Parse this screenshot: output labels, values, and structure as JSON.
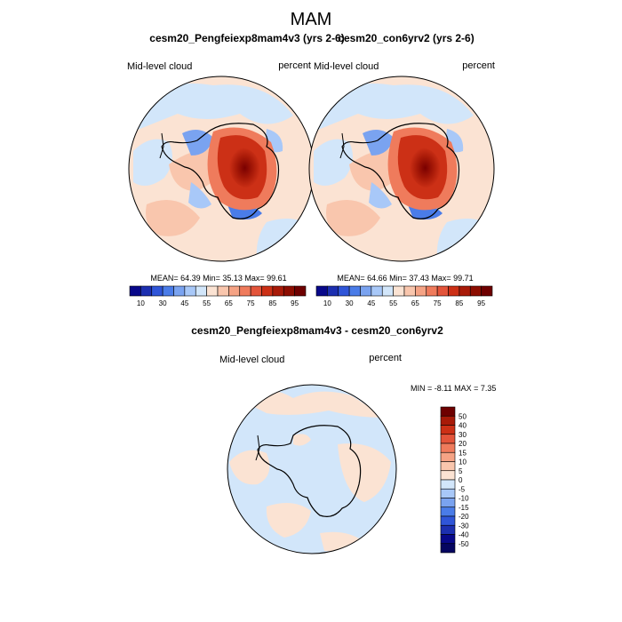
{
  "title": "MAM",
  "chart_data": [
    {
      "type": "contour-map",
      "projection": "south-polar-stereographic",
      "title": "cesm20_Pengfeiexp8mam4v3 (yrs 2-6)",
      "variable": "Mid-level cloud",
      "units": "percent",
      "stats": {
        "mean": "64.39",
        "min": "35.13",
        "max": "99.61",
        "text": "MEAN=  64.39  Min=  35.13  Max=  99.61"
      },
      "levels": [
        10,
        20,
        30,
        40,
        45,
        50,
        55,
        60,
        65,
        70,
        75,
        80,
        85,
        90,
        95
      ],
      "colorbar_labels": [
        "10",
        "30",
        "45",
        "55",
        "65",
        "75",
        "85",
        "95"
      ]
    },
    {
      "type": "contour-map",
      "projection": "south-polar-stereographic",
      "title": "cesm20_con6yrv2 (yrs 2-6)",
      "variable": "Mid-level cloud",
      "units": "percent",
      "stats": {
        "mean": "64.66",
        "min": "37.43",
        "max": "99.71",
        "text": "MEAN=  64.66  Min=  37.43  Max=  99.71"
      },
      "levels": [
        10,
        20,
        30,
        40,
        45,
        50,
        55,
        60,
        65,
        70,
        75,
        80,
        85,
        90,
        95
      ],
      "colorbar_labels": [
        "10",
        "30",
        "45",
        "55",
        "65",
        "75",
        "85",
        "95"
      ]
    },
    {
      "type": "contour-map",
      "projection": "south-polar-stereographic",
      "title": "cesm20_Pengfeiexp8mam4v3 - cesm20_con6yrv2",
      "variable": "Mid-level cloud",
      "units": "percent",
      "stats": {
        "min": "-8.11",
        "max": "7.35",
        "text": "MIN =  -8.11 MAX =   7.35"
      },
      "levels": [
        -50,
        -40,
        -30,
        -20,
        -15,
        -10,
        -5,
        0,
        5,
        10,
        15,
        20,
        30,
        40,
        50
      ],
      "colorbar_labels": [
        "50",
        "40",
        "30",
        "20",
        "15",
        "10",
        "5",
        "0",
        "-5",
        "-10",
        "-15",
        "-20",
        "-30",
        "-40",
        "-50"
      ]
    }
  ],
  "colors": {
    "cloud_scale": [
      "#08088a",
      "#1c2fb0",
      "#2f55d8",
      "#4a7ce8",
      "#7aa3f0",
      "#a8c8f8",
      "#d2e6fa",
      "#fbe3d3",
      "#f9c6ad",
      "#f5a385",
      "#ef7b5c",
      "#e3543a",
      "#cc3016",
      "#a81a08",
      "#8c0d00",
      "#6e0000"
    ],
    "diff_scale": [
      "#6e0000",
      "#a81a08",
      "#cc3016",
      "#e3543a",
      "#ef7b5c",
      "#f5a385",
      "#f9c6ad",
      "#fbe3d3",
      "#d2e6fa",
      "#a8c8f8",
      "#7aa3f0",
      "#4a7ce8",
      "#2f55d8",
      "#1c2fb0",
      "#08088a",
      "#050560"
    ]
  }
}
